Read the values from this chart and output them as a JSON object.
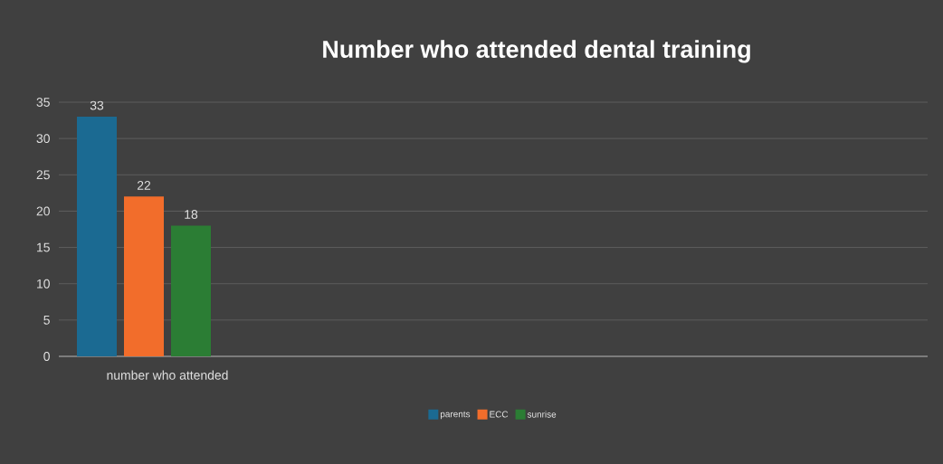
{
  "chart_data": {
    "type": "bar",
    "title": "Number who attended dental training",
    "categories": [
      "number who attended",
      null,
      null,
      null
    ],
    "series": [
      {
        "name": "parents",
        "color": "#1b6a92",
        "values": [
          33,
          null,
          null,
          null
        ]
      },
      {
        "name": "ECC",
        "color": "#f26d2b",
        "values": [
          22,
          null,
          null,
          null
        ]
      },
      {
        "name": "sunrise",
        "color": "#2b7d34",
        "values": [
          18,
          null,
          null,
          null
        ]
      },
      {
        "color": "#1fa6e0",
        "values": [
          null,
          null,
          null,
          null
        ]
      }
    ],
    "ylim": [
      0,
      35
    ],
    "yticks": [
      0,
      5,
      10,
      15,
      20,
      25,
      30,
      35
    ],
    "grid": "y",
    "legend": "bottom",
    "data_labels": true
  }
}
